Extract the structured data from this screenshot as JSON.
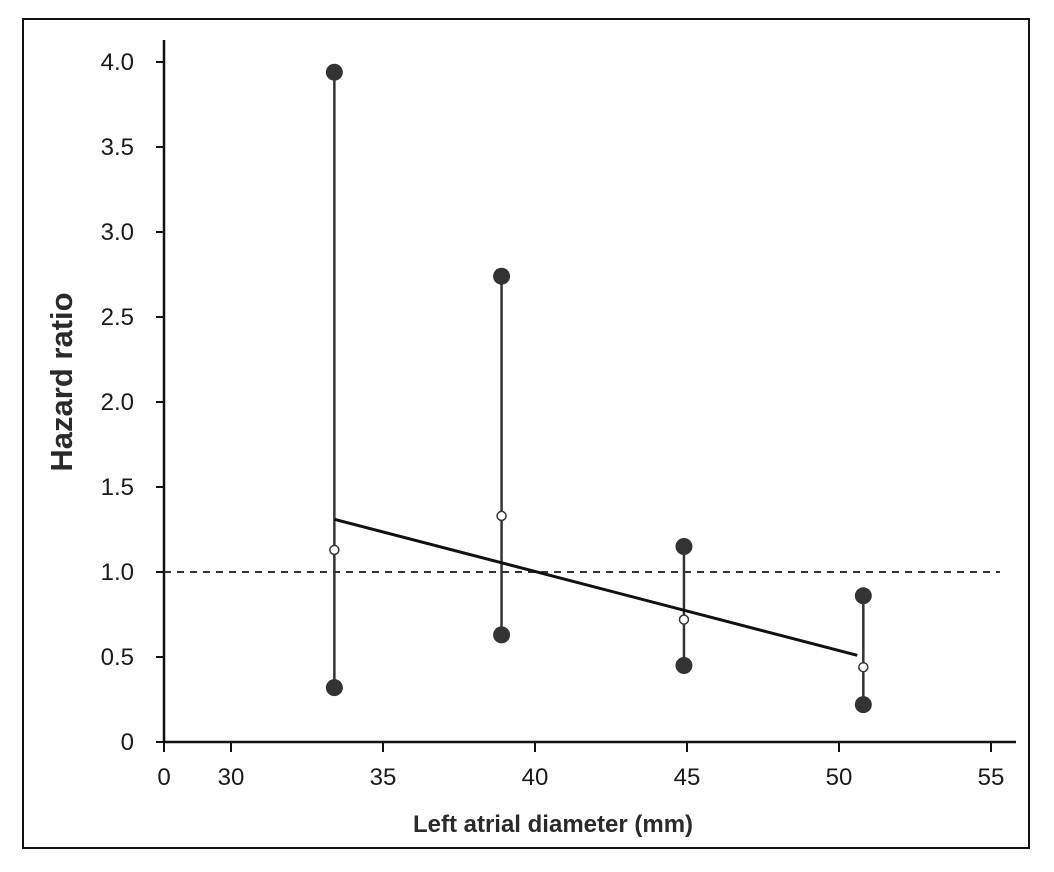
{
  "chart_data": {
    "type": "scatter",
    "title": "",
    "xlabel": "Left atrial diameter (mm)",
    "ylabel": "Hazard ratio",
    "x_break": {
      "origin_label": "0",
      "axis_start": 30
    },
    "xlim": [
      30,
      55
    ],
    "ylim": [
      0,
      4.0
    ],
    "x_ticks": [
      "0",
      "30",
      "35",
      "40",
      "45",
      "50",
      "55"
    ],
    "y_ticks": [
      "0",
      "0.5",
      "1.0",
      "1.5",
      "2.0",
      "2.5",
      "3.0",
      "3.5",
      "4.0"
    ],
    "grid": false,
    "reference_line": {
      "y": 1.0,
      "style": "dashed"
    },
    "intervals": [
      {
        "x": 33.4,
        "hr": 1.13,
        "lower": 0.32,
        "upper": 3.94
      },
      {
        "x": 38.9,
        "hr": 1.33,
        "lower": 0.63,
        "upper": 2.74
      },
      {
        "x": 44.9,
        "hr": 0.72,
        "lower": 0.45,
        "upper": 1.15
      },
      {
        "x": 50.8,
        "hr": 0.44,
        "lower": 0.22,
        "upper": 0.86
      }
    ],
    "trend_line": {
      "x": [
        33.4,
        50.6
      ],
      "y": [
        1.31,
        0.51
      ]
    }
  }
}
